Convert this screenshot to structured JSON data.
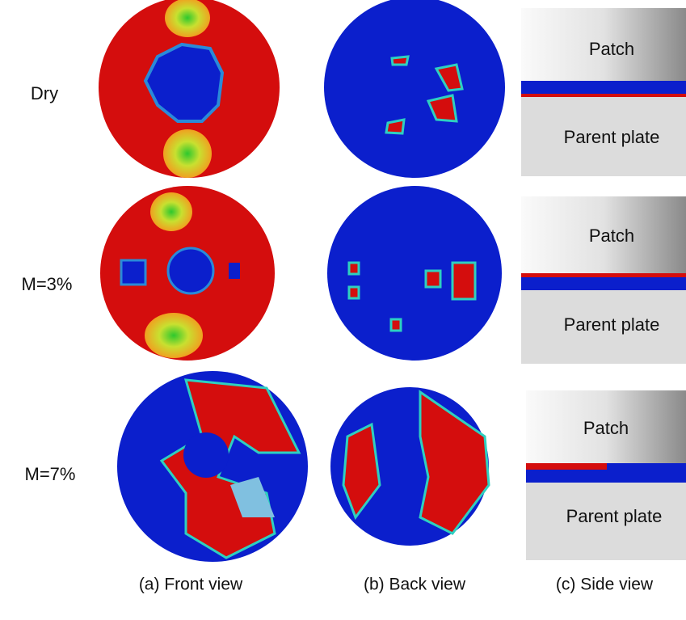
{
  "rows": [
    {
      "label": "Dry",
      "side": {
        "top": "Patch",
        "bottom": "Parent plate"
      }
    },
    {
      "label": "M=3%",
      "side": {
        "top": "Patch",
        "bottom": "Parent plate"
      }
    },
    {
      "label": "M=7%",
      "side": {
        "top": "Patch",
        "bottom": "Parent plate"
      }
    }
  ],
  "columns": [
    "(a) Front view",
    "(b) Back view",
    "(c) Side view"
  ]
}
